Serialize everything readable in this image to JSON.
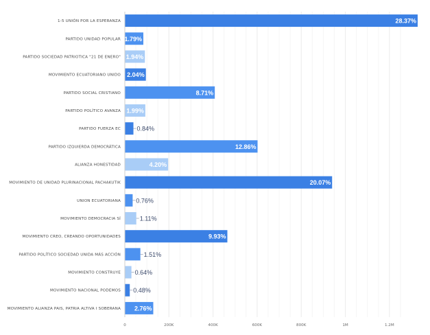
{
  "chart_data": {
    "type": "bar",
    "orientation": "horizontal",
    "title": "",
    "xlabel": "",
    "ylabel": "",
    "xlim": [
      0,
      1300000
    ],
    "x_ticks": [
      0,
      200000,
      400000,
      600000,
      800000,
      1000000,
      1200000
    ],
    "x_tick_labels": [
      "0",
      "200K",
      "400K",
      "600K",
      "800K",
      "1M",
      "1.2M"
    ],
    "grid": true,
    "categories": [
      "1-5 UNIÓN POR LA ESPERANZA",
      "PARTIDO UNIDAD POPULAR",
      "PARTIDO SOCIEDAD PATRIOTICA \"21 DE ENERO\"",
      "MOVIMIENTO ECUATORIANO UNIDO",
      "PARTIDO SOCIAL CRISTIANO",
      "PARTIDO POLÍTICO AVANZA",
      "PARTIDO FUERZA EC",
      "PARTIDO IZQUIERDA DEMOCRÁTICA",
      "ALIANZA HONESTIDAD",
      "MOVIMIENTO DE UNIDAD PLURINACIONAL PACHAKUTIK",
      "UNION ECUATORIANA",
      "MOVIMIENTO DEMOCRACIA SÍ",
      "MOVIMIENTO CREO, CREANDO OPORTUNIDADES",
      "PARTIDO POLÍTICO SOCIEDAD UNIDA MÁS ACCIÓN",
      "MOVIMIENTO CONSTRUYE",
      "MOVIMIENTO NACIONAL PODEMOS",
      "MOVIMIENTO ALIANZA PAIS, PATRIA ALTIVA I SOBERANA"
    ],
    "values": [
      1328000,
      84000,
      91000,
      95500,
      408000,
      93000,
      39000,
      602000,
      196500,
      940000,
      35500,
      52000,
      465000,
      70500,
      30000,
      22500,
      129000
    ],
    "labels": [
      "28.37%",
      "1.79%",
      "1.94%",
      "2.04%",
      "8.71%",
      "1.99%",
      "0.84%",
      "12.86%",
      "4.20%",
      "20.07%",
      "0.76%",
      "1.11%",
      "9.93%",
      "1.51%",
      "0.64%",
      "0.48%",
      "2.76%"
    ],
    "colors": [
      "#3b80e4",
      "#4d92f0",
      "#a9cdf7",
      "#3b80e4",
      "#4d92f0",
      "#a9cdf7",
      "#3b80e4",
      "#4d92f0",
      "#a9cdf7",
      "#3b80e4",
      "#4d92f0",
      "#a9cdf7",
      "#3b80e4",
      "#4d92f0",
      "#a9cdf7",
      "#3b80e4",
      "#4d92f0"
    ],
    "label_in_bar_color": "#ffffff",
    "label_out_color": "#3c4a6b",
    "legend": "none"
  }
}
